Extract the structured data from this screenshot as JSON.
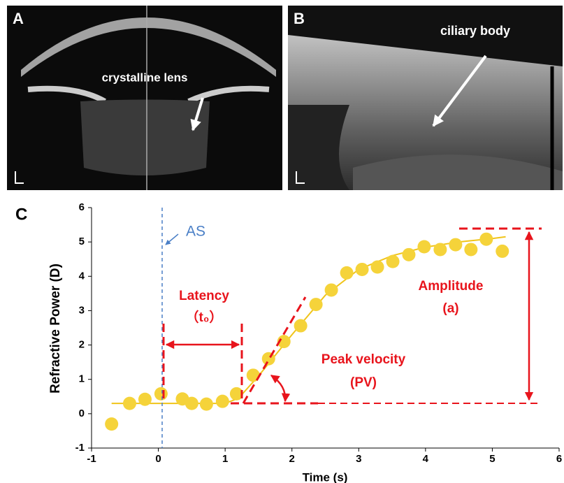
{
  "panels": {
    "a": {
      "label": "A",
      "annotation": "crystalline lens"
    },
    "b": {
      "label": "B",
      "annotation": "ciliary body"
    }
  },
  "chart_data": {
    "type": "scatter",
    "panel_label": "C",
    "x_label": "Time (s)",
    "y_label": "Refractive Power (D)",
    "x": [
      -0.7,
      -0.43,
      -0.2,
      0.04,
      0.36,
      0.5,
      0.72,
      0.96,
      1.17,
      1.42,
      1.65,
      1.88,
      2.13,
      2.36,
      2.59,
      2.82,
      3.05,
      3.28,
      3.51,
      3.75,
      3.98,
      4.22,
      4.45,
      4.68,
      4.91,
      5.15
    ],
    "values": [
      -0.3,
      0.3,
      0.42,
      0.58,
      0.43,
      0.3,
      0.28,
      0.36,
      0.58,
      1.12,
      1.6,
      2.1,
      2.56,
      3.18,
      3.6,
      4.1,
      4.2,
      4.27,
      4.43,
      4.63,
      4.86,
      4.78,
      4.92,
      4.78,
      5.08,
      4.73
    ],
    "color": "#f5d33a",
    "fit": {
      "x": [
        -0.7,
        0,
        0.5,
        1.0,
        1.2,
        1.5,
        2,
        2.5,
        3,
        3.5,
        4,
        4.5,
        5,
        5.2
      ],
      "values": [
        0.3,
        0.3,
        0.3,
        0.3,
        0.45,
        1.1,
        2.3,
        3.45,
        4.2,
        4.6,
        4.85,
        5.0,
        5.1,
        5.15
      ],
      "color": "#f0c419"
    },
    "xlim": [
      -1,
      6
    ],
    "ylim": [
      -1,
      6
    ],
    "xticks": [
      -1,
      0,
      1,
      2,
      3,
      4,
      5,
      6
    ],
    "yticks": [
      -1,
      0,
      1,
      2,
      3,
      4,
      5,
      6
    ],
    "annotations": {
      "stimulus": "AS",
      "latency": "Latency",
      "latency_symbol": "（t₀）",
      "velocity": "Peak velocity",
      "velocity_symbol": "(PV)",
      "amplitude": "Amplitude",
      "amplitude_symbol": "(a)"
    }
  }
}
